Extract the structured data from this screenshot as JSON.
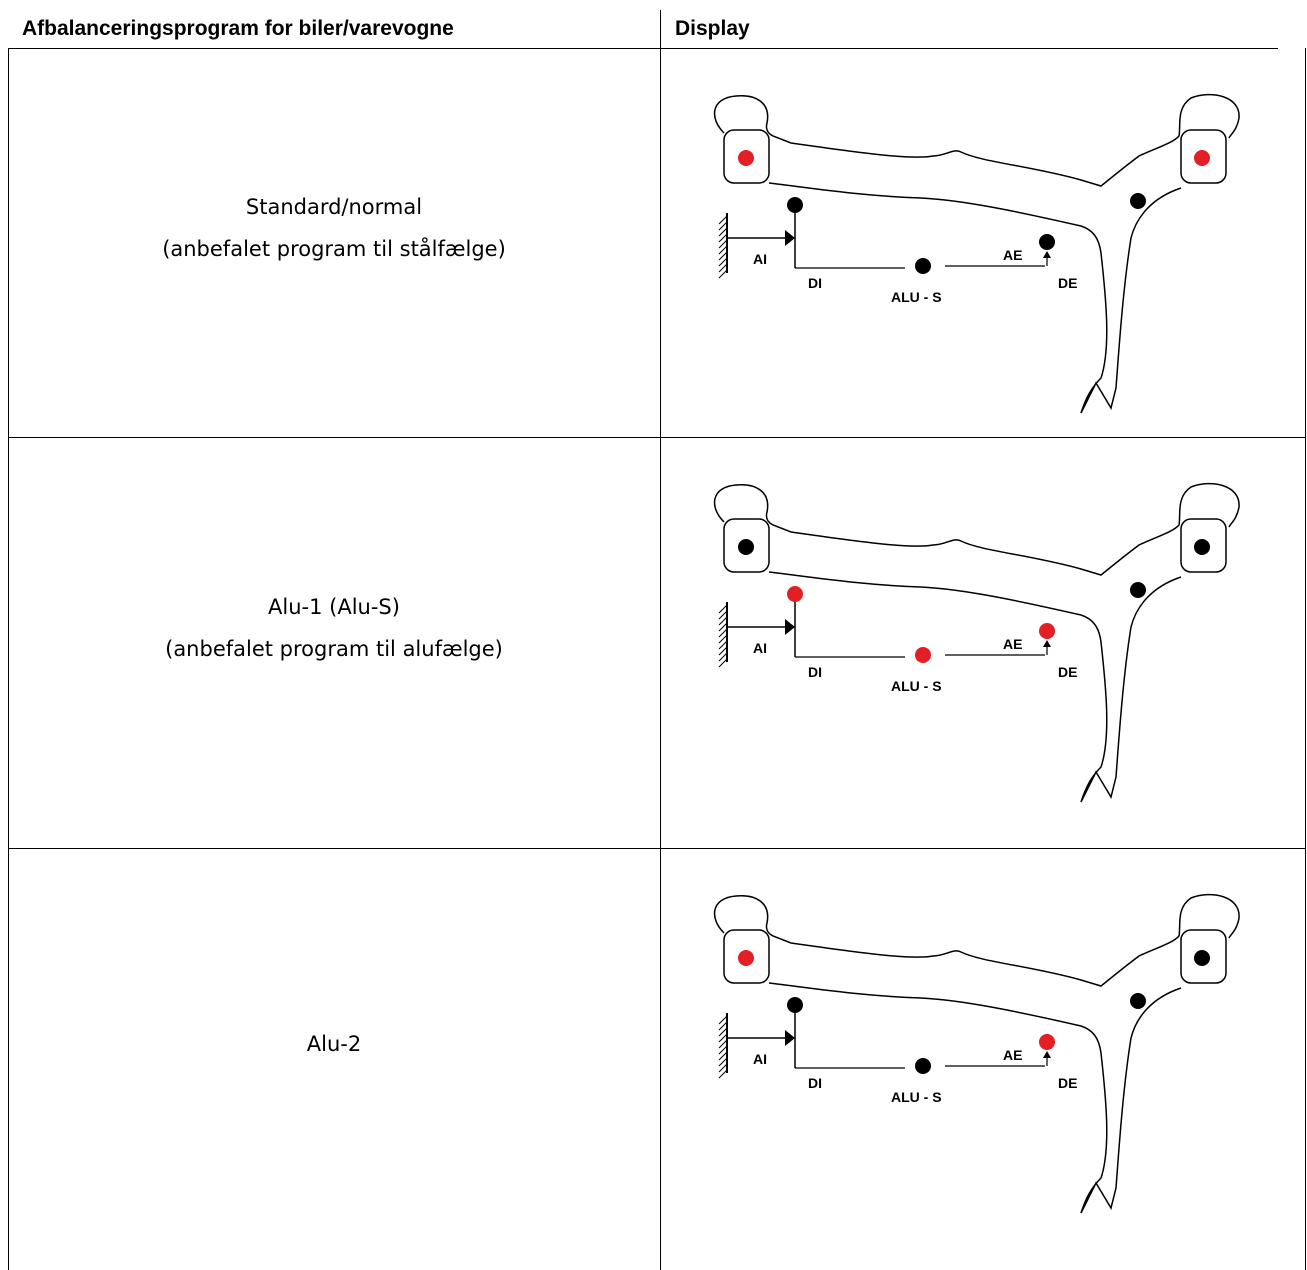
{
  "table": {
    "header": [
      "Afbalanceringsprogram for biler/varevogne",
      "Display"
    ],
    "diagram_labels": {
      "ai": "AI",
      "di": "DI",
      "alu": "ALU - S",
      "ae": "AE",
      "de": "DE"
    },
    "rows": [
      {
        "program": [
          "Standard/normal",
          "(anbefalet program til stålfælge)"
        ],
        "dots": [
          "#e31e24",
          "#000000",
          "#000000",
          "#000000",
          "#000000",
          "#e31e24"
        ]
      },
      {
        "program": [
          "Alu-1 (Alu-S)",
          "(anbefalet program til alufælge)"
        ],
        "dots": [
          "#000000",
          "#e31e24",
          "#e31e24",
          "#e31e24",
          "#000000",
          "#000000"
        ]
      },
      {
        "program": [
          "Alu-2"
        ],
        "dots": [
          "#e31e24",
          "#000000",
          "#000000",
          "#e31e24",
          "#000000",
          "#000000"
        ]
      }
    ]
  }
}
